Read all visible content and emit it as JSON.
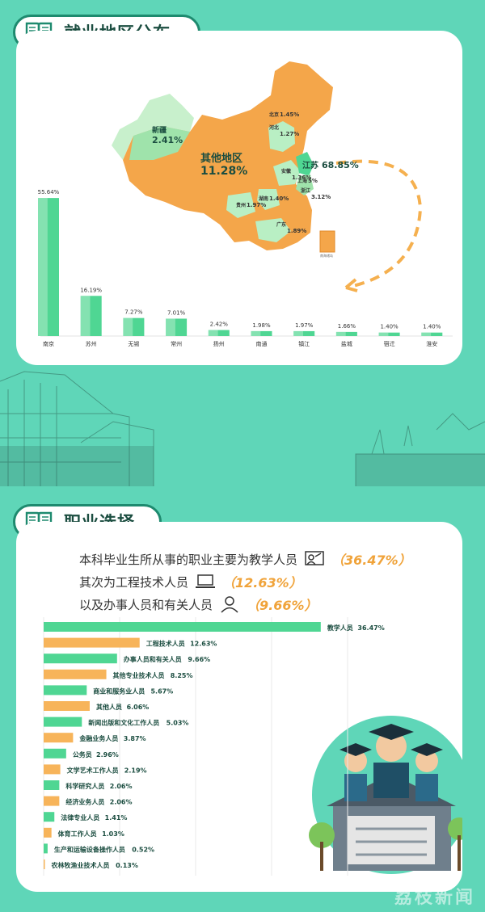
{
  "section1": {
    "title": "就业地区分布"
  },
  "map": {
    "labels": [
      {
        "name": "新疆",
        "value": "2.41%"
      },
      {
        "name": "北京",
        "value": "1.45%"
      },
      {
        "name": "河北",
        "value": "1.27%"
      },
      {
        "name": "其他地区",
        "value": "11.28%"
      },
      {
        "name": "江苏",
        "value": "68.85%"
      },
      {
        "name": "安徽",
        "value": "1.36%"
      },
      {
        "name": "上海",
        "value": "5%"
      },
      {
        "name": "浙江",
        "value": "3.12%"
      },
      {
        "name": "湖南",
        "value": "1.40%"
      },
      {
        "name": "贵州",
        "value": "1.97%"
      },
      {
        "name": "广东",
        "value": "1.89%"
      }
    ]
  },
  "section2": {
    "title": "职业选择"
  },
  "intro": [
    {
      "text": "本科毕业生所从事的职业主要为教学人员",
      "pct": "（36.47%）"
    },
    {
      "text": "其次为工程技术人员",
      "pct": "（12.63%）"
    },
    {
      "text": "以及办事人员和有关人员",
      "pct": "（9.66%）"
    }
  ],
  "watermark": "荔枝新闻",
  "chart_data": [
    {
      "type": "bar",
      "categories": [
        "南京",
        "苏州",
        "无锡",
        "常州",
        "扬州",
        "南通",
        "镇江",
        "盐城",
        "宿迁",
        "淮安"
      ],
      "values": [
        55.64,
        16.19,
        7.27,
        7.01,
        2.42,
        1.98,
        1.97,
        1.66,
        1.4,
        1.4
      ],
      "value_labels": [
        "55.64%",
        "16.19%",
        "7.27%",
        "7.01%",
        "2.42%",
        "1.98%",
        "1.97%",
        "1.66%",
        "1.40%",
        "1.40%"
      ],
      "ylim": [
        0,
        56
      ],
      "grid": false,
      "colors": {
        "bar": "#4fd693",
        "bar_light": "#c6f2d8"
      }
    },
    {
      "type": "bar",
      "orientation": "horizontal",
      "categories": [
        "教学人员",
        "工程技术人员",
        "办事人员和有关人员",
        "其他专业技术人员",
        "商业和服务业人员",
        "其他人员",
        "新闻出版和文化工作人员",
        "金融业务人员",
        "公务员",
        "文学艺术工作人员",
        "科学研究人员",
        "经济业务人员",
        "法律专业人员",
        "体育工作人员",
        "生产和运输设备操作人员",
        "农林牧渔业技术人员"
      ],
      "values": [
        36.47,
        12.63,
        9.66,
        8.25,
        5.67,
        6.06,
        5.03,
        3.87,
        2.96,
        2.19,
        2.06,
        2.06,
        1.41,
        1.03,
        0.52,
        0.13
      ],
      "value_labels": [
        "36.47%",
        "12.63%",
        "9.66%",
        "8.25%",
        "5.67%",
        "6.06%",
        "5.03%",
        "3.87%",
        "2.96%",
        "2.19%",
        "2.06%",
        "2.06%",
        "1.41%",
        "1.03%",
        "0.52%",
        "0.13%"
      ],
      "xlim": [
        0,
        40
      ],
      "grid": true,
      "colors": {
        "green": "#4fd693",
        "orange": "#f7b45a",
        "label": "#1b4d40"
      }
    }
  ]
}
